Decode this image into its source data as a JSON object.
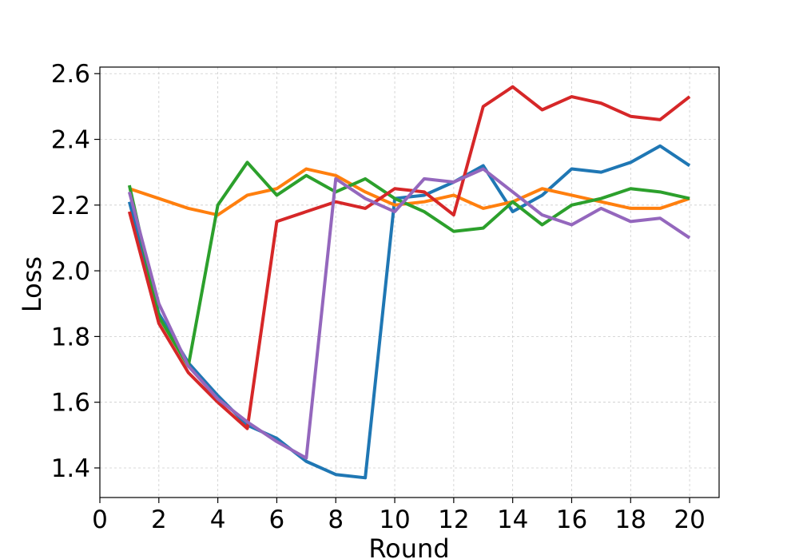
{
  "chart_data": {
    "type": "line",
    "title": "",
    "xlabel": "Round",
    "ylabel": "Loss",
    "xlim": [
      0,
      21
    ],
    "ylim": [
      1.31,
      2.62
    ],
    "xticks": [
      0,
      2,
      4,
      6,
      8,
      10,
      12,
      14,
      16,
      18,
      20
    ],
    "yticks": [
      1.4,
      1.6,
      1.8,
      2.0,
      2.2,
      2.4,
      2.6
    ],
    "grid": true,
    "legend": "none",
    "x": [
      1,
      2,
      3,
      4,
      5,
      6,
      7,
      8,
      9,
      10,
      11,
      12,
      13,
      14,
      15,
      16,
      17,
      18,
      19,
      20
    ],
    "series": [
      {
        "color": "#1f77b4",
        "values": [
          2.21,
          1.87,
          1.72,
          1.62,
          1.53,
          1.49,
          1.42,
          1.38,
          1.37,
          2.22,
          2.23,
          2.27,
          2.32,
          2.18,
          2.23,
          2.31,
          2.3,
          2.33,
          2.38,
          2.32
        ]
      },
      {
        "color": "#ff7f0e",
        "values": [
          2.25,
          2.22,
          2.19,
          2.17,
          2.23,
          2.25,
          2.31,
          2.29,
          2.24,
          2.2,
          2.21,
          2.23,
          2.19,
          2.21,
          2.25,
          2.23,
          2.21,
          2.19,
          2.19,
          2.22
        ]
      },
      {
        "color": "#2ca02c",
        "values": [
          2.26,
          1.86,
          1.71,
          2.2,
          2.33,
          2.23,
          2.29,
          2.24,
          2.28,
          2.22,
          2.18,
          2.12,
          2.13,
          2.21,
          2.14,
          2.2,
          2.22,
          2.25,
          2.24,
          2.22
        ]
      },
      {
        "color": "#d62728",
        "values": [
          2.18,
          1.84,
          1.69,
          1.6,
          1.52,
          2.15,
          2.18,
          2.21,
          2.19,
          2.25,
          2.24,
          2.17,
          2.5,
          2.56,
          2.49,
          2.53,
          2.51,
          2.47,
          2.46,
          2.53
        ]
      },
      {
        "color": "#9467bd",
        "values": [
          2.24,
          1.9,
          1.71,
          1.61,
          1.54,
          1.48,
          1.43,
          2.28,
          2.22,
          2.18,
          2.28,
          2.27,
          2.31,
          2.24,
          2.17,
          2.14,
          2.19,
          2.15,
          2.16,
          2.1
        ]
      }
    ]
  }
}
